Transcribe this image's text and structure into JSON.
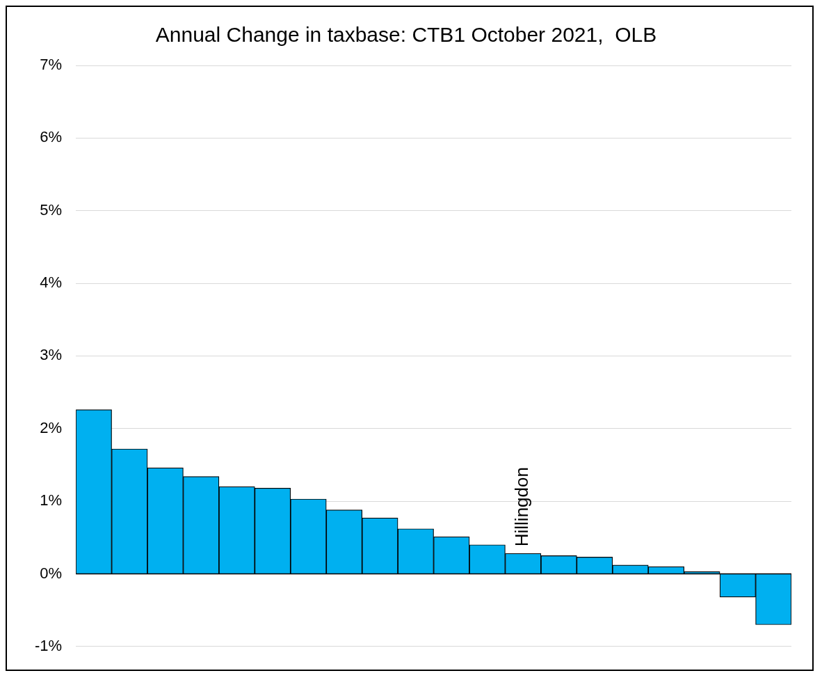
{
  "chart_data": {
    "type": "bar",
    "title": "Annual Change in taxbase: CTB1 October 2021,  OLB",
    "categories": [
      null,
      null,
      null,
      null,
      null,
      null,
      null,
      null,
      null,
      null,
      null,
      null,
      "Hillingdon",
      null,
      null,
      null,
      null,
      null,
      null,
      null
    ],
    "values": [
      2.26,
      1.72,
      1.46,
      1.34,
      1.2,
      1.18,
      1.03,
      0.88,
      0.77,
      0.62,
      0.51,
      0.4,
      0.28,
      0.25,
      0.23,
      0.12,
      0.1,
      0.03,
      -0.32,
      -0.7
    ],
    "color": "#00b0f0",
    "ylim": [
      -1,
      7
    ],
    "yticks": [
      {
        "value": -1,
        "label": "-1%"
      },
      {
        "value": 0,
        "label": "0%"
      },
      {
        "value": 1,
        "label": "1%"
      },
      {
        "value": 2,
        "label": "2%"
      },
      {
        "value": 3,
        "label": "3%"
      },
      {
        "value": 4,
        "label": "4%"
      },
      {
        "value": 5,
        "label": "5%"
      },
      {
        "value": 6,
        "label": "6%"
      },
      {
        "value": 7,
        "label": "7%"
      }
    ],
    "grid": "y",
    "legend": false
  }
}
